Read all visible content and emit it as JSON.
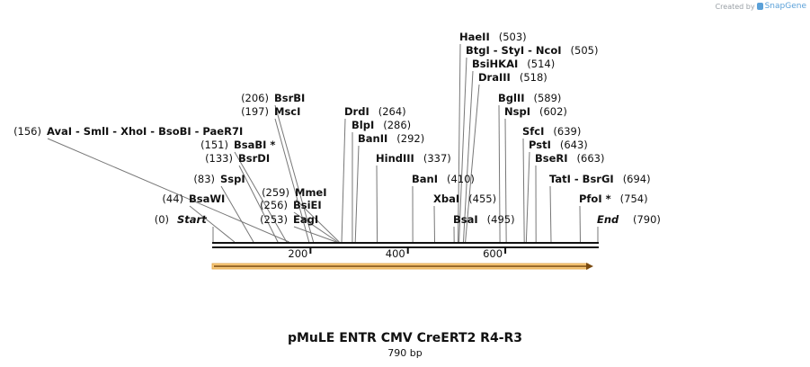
{
  "credit": {
    "prefix": "Created by",
    "brand": "SnapGene"
  },
  "map": {
    "title": "pMuLE ENTR CMV CreERT2 R4-R3",
    "subtitle": "790 bp",
    "length": 790,
    "ruler_ticks": [
      "200",
      "400",
      "600"
    ],
    "ends": [
      {
        "name": "Start",
        "pos": "(0)"
      },
      {
        "name": "End",
        "pos": "(790)"
      }
    ],
    "sites": [
      {
        "names": "AvaI - SmlI - XhoI - BsoBI - PaeR7I",
        "pos": "(156)"
      },
      {
        "names": "BsaBI *",
        "pos": "(151)"
      },
      {
        "names": "BsrDI",
        "pos": "(133)"
      },
      {
        "names": "SspI",
        "pos": "(83)"
      },
      {
        "names": "BsaWI",
        "pos": "(44)"
      },
      {
        "names": "BsrBI",
        "pos": "(206)"
      },
      {
        "names": "MscI",
        "pos": "(197)"
      },
      {
        "names": "MmeI",
        "pos": "(259)"
      },
      {
        "names": "BsiEI",
        "pos": "(256)"
      },
      {
        "names": "EagI",
        "pos": "(253)"
      },
      {
        "names": "DrdI",
        "pos": "(264)"
      },
      {
        "names": "BlpI",
        "pos": "(286)"
      },
      {
        "names": "BanII",
        "pos": "(292)"
      },
      {
        "names": "HindIII",
        "pos": "(337)"
      },
      {
        "names": "BanI",
        "pos": "(410)"
      },
      {
        "names": "XbaI",
        "pos": "(455)"
      },
      {
        "names": "BsaI",
        "pos": "(495)"
      },
      {
        "names": "HaeII",
        "pos": "(503)"
      },
      {
        "names": "BtgI - StyI - NcoI",
        "pos": "(505)"
      },
      {
        "names": "BsiHKAI",
        "pos": "(514)"
      },
      {
        "names": "DraIII",
        "pos": "(518)"
      },
      {
        "names": "BglII",
        "pos": "(589)"
      },
      {
        "names": "NspI",
        "pos": "(602)"
      },
      {
        "names": "SfcI",
        "pos": "(639)"
      },
      {
        "names": "PstI",
        "pos": "(643)"
      },
      {
        "names": "BseRI",
        "pos": "(663)"
      },
      {
        "names": "TatI - BsrGI",
        "pos": "(694)"
      },
      {
        "names": "PfoI *",
        "pos": "(754)"
      }
    ]
  }
}
